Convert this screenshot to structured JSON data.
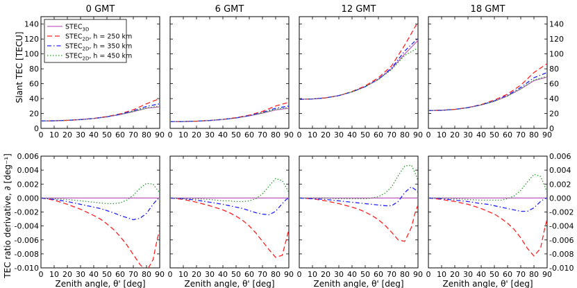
{
  "figure": {
    "ylabel_top": "Slant TEC [TECU]",
    "ylabel_bottom": "TEC ratio derivative, ∂ [deg⁻¹]",
    "xlabel": "Zenith angle, θ' [deg]"
  },
  "legend": {
    "entries": [
      {
        "label": "STEC",
        "sub": "3D",
        "suffix": "",
        "color": "#c060c0",
        "dash": "solid"
      },
      {
        "label": "STEC",
        "sub": "2D",
        "suffix": ", h = 250 km",
        "color": "#ff2020",
        "dash": "dashed"
      },
      {
        "label": "STEC",
        "sub": "2D",
        "suffix": ", h = 350 km",
        "color": "#2020ff",
        "dash": "dashdot"
      },
      {
        "label": "STEC",
        "sub": "2D",
        "suffix": ", h = 450 km",
        "color": "#20a020",
        "dash": "dotted"
      }
    ]
  },
  "chart_data": [
    {
      "type": "line",
      "panel": "top",
      "title": "0 GMT",
      "xlim": [
        0,
        90
      ],
      "ylim": [
        0,
        150
      ],
      "xticks": [
        0,
        10,
        20,
        30,
        40,
        50,
        60,
        70,
        80,
        90
      ],
      "yticks": [
        0,
        20,
        40,
        60,
        80,
        100,
        120,
        140
      ],
      "x": [
        0,
        10,
        20,
        30,
        40,
        50,
        60,
        70,
        80,
        90
      ],
      "series": [
        {
          "name": "STEC3D",
          "values": [
            10,
            10.2,
            10.8,
            11.8,
            13.3,
            15.5,
            18.5,
            22.5,
            27,
            29
          ]
        },
        {
          "name": "STEC2D h=250 km",
          "values": [
            10,
            10.2,
            10.8,
            11.8,
            13.4,
            15.8,
            19.5,
            25,
            33,
            40
          ]
        },
        {
          "name": "STEC2D h=350 km",
          "values": [
            10,
            10.2,
            10.8,
            11.8,
            13.3,
            15.6,
            19,
            23.5,
            29.5,
            33
          ]
        },
        {
          "name": "STEC2D h=450 km",
          "values": [
            10,
            10.2,
            10.8,
            11.8,
            13.3,
            15.5,
            18.7,
            22.8,
            27.5,
            30
          ]
        }
      ]
    },
    {
      "type": "line",
      "panel": "top",
      "title": "6 GMT",
      "xlim": [
        0,
        90
      ],
      "ylim": [
        0,
        150
      ],
      "xticks": [
        0,
        10,
        20,
        30,
        40,
        50,
        60,
        70,
        80,
        90
      ],
      "yticks": [],
      "x": [
        0,
        10,
        20,
        30,
        40,
        50,
        60,
        70,
        80,
        90
      ],
      "series": [
        {
          "name": "STEC3D",
          "values": [
            9,
            9.2,
            9.7,
            10.6,
            12,
            14,
            16.8,
            20.5,
            24.8,
            27
          ]
        },
        {
          "name": "STEC2D h=250 km",
          "values": [
            9,
            9.2,
            9.7,
            10.6,
            12.1,
            14.4,
            17.8,
            22.8,
            30,
            35
          ]
        },
        {
          "name": "STEC2D h=350 km",
          "values": [
            9,
            9.2,
            9.7,
            10.6,
            12,
            14.1,
            17.2,
            21.5,
            27,
            30
          ]
        },
        {
          "name": "STEC2D h=450 km",
          "values": [
            9,
            9.2,
            9.7,
            10.6,
            12,
            14,
            16.9,
            20.8,
            25.5,
            28
          ]
        }
      ]
    },
    {
      "type": "line",
      "panel": "top",
      "title": "12 GMT",
      "xlim": [
        0,
        90
      ],
      "ylim": [
        0,
        150
      ],
      "xticks": [
        0,
        10,
        20,
        30,
        40,
        50,
        60,
        70,
        80,
        90
      ],
      "yticks": [],
      "x": [
        0,
        10,
        20,
        30,
        40,
        50,
        60,
        70,
        80,
        90
      ],
      "series": [
        {
          "name": "STEC3D",
          "values": [
            39,
            39.5,
            41,
            44,
            49,
            56,
            66,
            80,
            100,
            118
          ]
        },
        {
          "name": "STEC2D h=250 km",
          "values": [
            39,
            39.5,
            41,
            44,
            49.5,
            57,
            68,
            84,
            112,
            143
          ]
        },
        {
          "name": "STEC2D h=350 km",
          "values": [
            39,
            39.5,
            41,
            44,
            49,
            56,
            66,
            81,
            104,
            121
          ]
        },
        {
          "name": "STEC2D h=450 km",
          "values": [
            39,
            39.5,
            41,
            44,
            49,
            56,
            65.5,
            79,
            98,
            108
          ]
        }
      ]
    },
    {
      "type": "line",
      "panel": "top",
      "title": "18 GMT",
      "xlim": [
        0,
        90
      ],
      "ylim": [
        0,
        150
      ],
      "xticks": [
        0,
        10,
        20,
        30,
        40,
        50,
        60,
        70,
        80,
        90
      ],
      "yticks": [
        0,
        20,
        40,
        60,
        80,
        100,
        120,
        140
      ],
      "x": [
        0,
        10,
        20,
        30,
        40,
        50,
        60,
        70,
        80,
        90
      ],
      "series": [
        {
          "name": "STEC3D",
          "values": [
            24,
            24.3,
            25.5,
            27.8,
            31.5,
            36.5,
            43.5,
            53,
            64,
            69
          ]
        },
        {
          "name": "STEC2D h=250 km",
          "values": [
            24,
            24.3,
            25.5,
            28,
            32,
            38,
            46,
            58,
            75,
            87
          ]
        },
        {
          "name": "STEC2D h=350 km",
          "values": [
            24,
            24.3,
            25.5,
            27.8,
            31.7,
            37,
            44.5,
            55,
            68,
            75
          ]
        },
        {
          "name": "STEC2D h=450 km",
          "values": [
            24,
            24.3,
            25.5,
            27.8,
            31.5,
            36.5,
            43.5,
            53,
            65,
            70
          ]
        }
      ]
    },
    {
      "type": "line",
      "panel": "bottom",
      "title": "",
      "xlabel": "Zenith angle, θ' [deg]",
      "xlim": [
        0,
        90
      ],
      "ylim": [
        -0.01,
        0.006
      ],
      "xticks": [
        0,
        10,
        20,
        30,
        40,
        50,
        60,
        70,
        80,
        90
      ],
      "yticks": [
        -0.01,
        -0.008,
        -0.006,
        -0.004,
        -0.002,
        0.0,
        0.002,
        0.004,
        0.006
      ],
      "x": [
        0,
        10,
        20,
        30,
        40,
        45,
        50,
        55,
        60,
        65,
        70,
        75,
        80,
        85,
        88,
        90
      ],
      "series": [
        {
          "name": "STEC3D",
          "values": [
            0,
            0,
            0,
            0,
            0,
            0,
            0,
            0,
            0,
            0,
            0,
            0,
            0,
            0,
            0,
            0
          ]
        },
        {
          "name": "STEC2D h=250 km",
          "values": [
            0,
            -0.0003,
            -0.0009,
            -0.0016,
            -0.0025,
            -0.003,
            -0.0037,
            -0.0045,
            -0.0055,
            -0.0067,
            -0.0081,
            -0.0095,
            -0.0105,
            -0.0088,
            -0.006,
            -0.0045
          ]
        },
        {
          "name": "STEC2D h=350 km",
          "values": [
            0,
            -0.0002,
            -0.0005,
            -0.0009,
            -0.0013,
            -0.0015,
            -0.0018,
            -0.0021,
            -0.0025,
            -0.0028,
            -0.0031,
            -0.0029,
            -0.0022,
            -0.0009,
            -0.0002,
            0
          ]
        },
        {
          "name": "STEC2D h=450 km",
          "values": [
            0,
            -0.0001,
            -0.0002,
            -0.0004,
            -0.0006,
            -0.0007,
            -0.0008,
            -0.0008,
            -0.0007,
            -0.0003,
            0.0004,
            0.0014,
            0.0021,
            0.002,
            0.0012,
            0.0008
          ]
        }
      ]
    },
    {
      "type": "line",
      "panel": "bottom",
      "title": "",
      "xlabel": "Zenith angle, θ' [deg]",
      "xlim": [
        0,
        90
      ],
      "ylim": [
        -0.01,
        0.006
      ],
      "xticks": [
        0,
        10,
        20,
        30,
        40,
        50,
        60,
        70,
        80,
        90
      ],
      "yticks": [],
      "x": [
        0,
        10,
        20,
        30,
        40,
        45,
        50,
        55,
        60,
        65,
        70,
        75,
        80,
        85,
        88,
        90
      ],
      "series": [
        {
          "name": "STEC3D",
          "values": [
            0,
            0,
            0,
            0,
            0,
            0,
            0,
            0,
            0,
            0,
            0,
            0,
            0,
            0,
            0,
            0
          ]
        },
        {
          "name": "STEC2D h=250 km",
          "values": [
            0,
            -0.0002,
            -0.0006,
            -0.0011,
            -0.0017,
            -0.0021,
            -0.0026,
            -0.0032,
            -0.004,
            -0.005,
            -0.0062,
            -0.0074,
            -0.0085,
            -0.0082,
            -0.006,
            -0.0045
          ]
        },
        {
          "name": "STEC2D h=350 km",
          "values": [
            0,
            -0.0001,
            -0.0003,
            -0.0006,
            -0.0009,
            -0.0011,
            -0.0013,
            -0.0015,
            -0.0018,
            -0.0021,
            -0.0023,
            -0.0024,
            -0.0019,
            -0.0008,
            -0.0002,
            0
          ]
        },
        {
          "name": "STEC2D h=450 km",
          "values": [
            0,
            -0.0001,
            -0.0001,
            -0.0002,
            -0.0004,
            -0.0004,
            -0.0005,
            -0.0005,
            -0.0004,
            -0.0001,
            0.0006,
            0.0017,
            0.0028,
            0.0025,
            0.0015,
            0.0008
          ]
        }
      ]
    },
    {
      "type": "line",
      "panel": "bottom",
      "title": "",
      "xlabel": "Zenith angle, θ' [deg]",
      "xlim": [
        0,
        90
      ],
      "ylim": [
        -0.01,
        0.006
      ],
      "xticks": [
        0,
        10,
        20,
        30,
        40,
        50,
        60,
        70,
        80,
        90
      ],
      "yticks": [],
      "x": [
        0,
        10,
        20,
        30,
        40,
        45,
        50,
        55,
        60,
        65,
        70,
        75,
        80,
        85,
        88,
        90
      ],
      "series": [
        {
          "name": "STEC3D",
          "values": [
            0,
            0,
            0,
            0,
            0,
            0,
            0,
            0,
            0,
            0,
            0,
            0,
            0,
            0,
            0,
            0
          ]
        },
        {
          "name": "STEC2D h=250 km",
          "values": [
            0,
            -0.0001,
            -0.0004,
            -0.0008,
            -0.0013,
            -0.0016,
            -0.002,
            -0.0025,
            -0.0031,
            -0.0039,
            -0.0049,
            -0.006,
            -0.0062,
            -0.0042,
            -0.002,
            -0.001
          ]
        },
        {
          "name": "STEC2D h=350 km",
          "values": [
            0,
            -0.0001,
            -0.0002,
            -0.0004,
            -0.0006,
            -0.0007,
            -0.0008,
            -0.0009,
            -0.001,
            -0.0011,
            -0.0011,
            -0.0005,
            0.0008,
            0.0016,
            0.0012,
            0.0008
          ]
        },
        {
          "name": "STEC2D h=450 km",
          "values": [
            0,
            0,
            0,
            -0.0001,
            -0.0001,
            -0.0001,
            -0.0001,
            0,
            0.0002,
            0.0007,
            0.0016,
            0.0032,
            0.0046,
            0.0047,
            0.0035,
            0.0025
          ]
        }
      ]
    },
    {
      "type": "line",
      "panel": "bottom",
      "title": "",
      "xlabel": "Zenith angle, θ' [deg]",
      "xlim": [
        0,
        90
      ],
      "ylim": [
        -0.01,
        0.006
      ],
      "xticks": [
        0,
        10,
        20,
        30,
        40,
        50,
        60,
        70,
        80,
        90
      ],
      "yticks": [
        -0.01,
        -0.008,
        -0.006,
        -0.004,
        -0.002,
        0.0,
        0.002,
        0.004,
        0.006
      ],
      "x": [
        0,
        10,
        20,
        30,
        40,
        45,
        50,
        55,
        60,
        65,
        70,
        75,
        80,
        85,
        88,
        90
      ],
      "series": [
        {
          "name": "STEC3D",
          "values": [
            0,
            0,
            0,
            0,
            0,
            0,
            0,
            0,
            0,
            0,
            0,
            0,
            0,
            0,
            0,
            0
          ]
        },
        {
          "name": "STEC2D h=250 km",
          "values": [
            0,
            -0.0002,
            -0.0005,
            -0.0009,
            -0.0015,
            -0.0019,
            -0.0023,
            -0.0029,
            -0.0036,
            -0.0045,
            -0.0057,
            -0.0072,
            -0.0083,
            -0.0072,
            -0.0045,
            -0.003
          ]
        },
        {
          "name": "STEC2D h=350 km",
          "values": [
            0,
            -0.0001,
            -0.0003,
            -0.0005,
            -0.0008,
            -0.0009,
            -0.0011,
            -0.0013,
            -0.0015,
            -0.0017,
            -0.0019,
            -0.0019,
            -0.0014,
            -0.0005,
            -0.0001,
            0
          ]
        },
        {
          "name": "STEC2D h=450 km",
          "values": [
            0,
            0,
            -0.0001,
            -0.0002,
            -0.0003,
            -0.0003,
            -0.0003,
            -0.0003,
            -0.0001,
            0.0003,
            0.0011,
            0.0023,
            0.0034,
            0.0031,
            0.0018,
            0.0008
          ]
        }
      ]
    }
  ]
}
